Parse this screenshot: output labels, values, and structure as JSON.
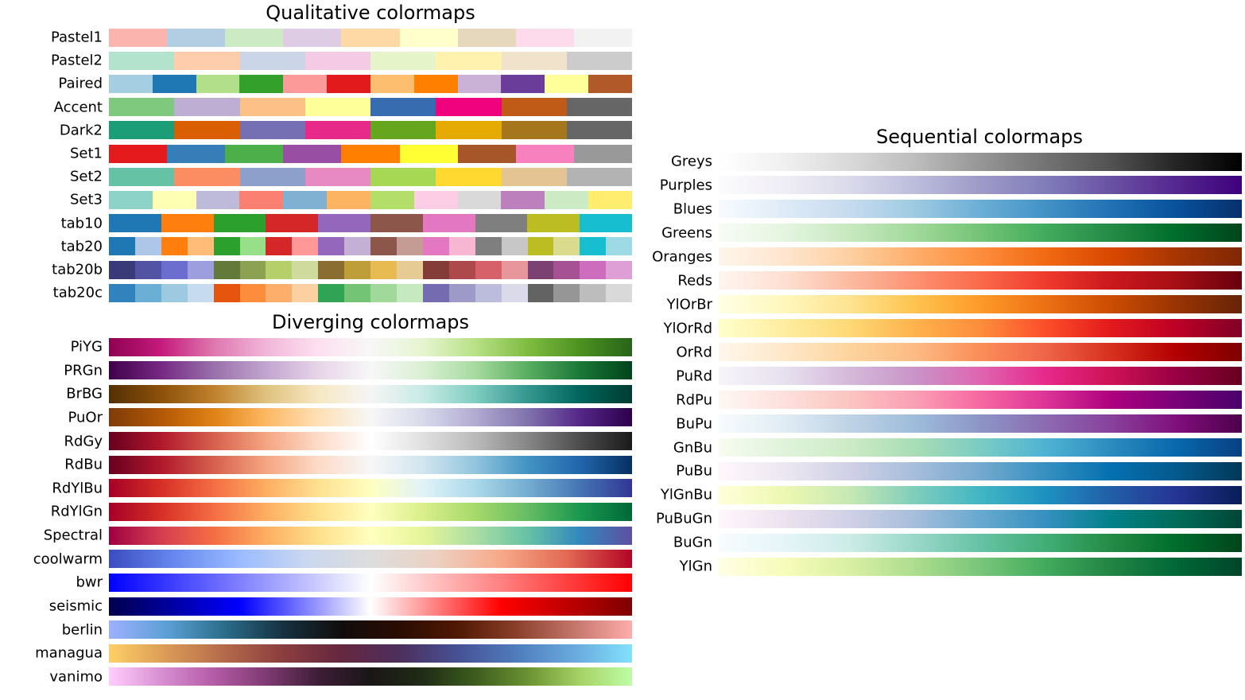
{
  "chart_data": [
    {
      "type": "heatmap",
      "title": "Qualitative colormaps",
      "colormaps": [
        {
          "name": "Pastel1",
          "discrete": true,
          "colors": [
            "#fbb4ae",
            "#b3cde3",
            "#ccebc5",
            "#decbe4",
            "#fed9a6",
            "#ffffcc",
            "#e5d8bd",
            "#fddaec",
            "#f2f2f2"
          ]
        },
        {
          "name": "Pastel2",
          "discrete": true,
          "colors": [
            "#b3e2cd",
            "#fdcdac",
            "#cbd5e8",
            "#f4cae4",
            "#e6f5c9",
            "#fff2ae",
            "#f1e2cc",
            "#cccccc"
          ]
        },
        {
          "name": "Paired",
          "discrete": true,
          "colors": [
            "#a6cee3",
            "#1f78b4",
            "#b2df8a",
            "#33a02c",
            "#fb9a99",
            "#e31a1c",
            "#fdbf6f",
            "#ff7f00",
            "#cab2d6",
            "#6a3d9a",
            "#ffff99",
            "#b15928"
          ]
        },
        {
          "name": "Accent",
          "discrete": true,
          "colors": [
            "#7fc97f",
            "#beaed4",
            "#fdc086",
            "#ffff99",
            "#386cb0",
            "#f0027f",
            "#bf5b17",
            "#666666"
          ]
        },
        {
          "name": "Dark2",
          "discrete": true,
          "colors": [
            "#1b9e77",
            "#d95f02",
            "#7570b3",
            "#e7298a",
            "#66a61e",
            "#e6ab02",
            "#a6761d",
            "#666666"
          ]
        },
        {
          "name": "Set1",
          "discrete": true,
          "colors": [
            "#e41a1c",
            "#377eb8",
            "#4daf4a",
            "#984ea3",
            "#ff7f00",
            "#ffff33",
            "#a65628",
            "#f781bf",
            "#999999"
          ]
        },
        {
          "name": "Set2",
          "discrete": true,
          "colors": [
            "#66c2a5",
            "#fc8d62",
            "#8da0cb",
            "#e78ac3",
            "#a6d854",
            "#ffd92f",
            "#e5c494",
            "#b3b3b3"
          ]
        },
        {
          "name": "Set3",
          "discrete": true,
          "colors": [
            "#8dd3c7",
            "#ffffb3",
            "#bebada",
            "#fb8072",
            "#80b1d3",
            "#fdb462",
            "#b3de69",
            "#fccde5",
            "#d9d9d9",
            "#bc80bd",
            "#ccebc5",
            "#ffed6f"
          ]
        },
        {
          "name": "tab10",
          "discrete": true,
          "colors": [
            "#1f77b4",
            "#ff7f0e",
            "#2ca02c",
            "#d62728",
            "#9467bd",
            "#8c564b",
            "#e377c2",
            "#7f7f7f",
            "#bcbd22",
            "#17becf"
          ]
        },
        {
          "name": "tab20",
          "discrete": true,
          "colors": [
            "#1f77b4",
            "#aec7e8",
            "#ff7f0e",
            "#ffbb78",
            "#2ca02c",
            "#98df8a",
            "#d62728",
            "#ff9896",
            "#9467bd",
            "#c5b0d5",
            "#8c564b",
            "#c49c94",
            "#e377c2",
            "#f7b6d2",
            "#7f7f7f",
            "#c7c7c7",
            "#bcbd22",
            "#dbdb8d",
            "#17becf",
            "#9edae5"
          ]
        },
        {
          "name": "tab20b",
          "discrete": true,
          "colors": [
            "#393b79",
            "#5254a3",
            "#6b6ecf",
            "#9c9ede",
            "#637939",
            "#8ca252",
            "#b5cf6b",
            "#cedb9c",
            "#8c6d31",
            "#bd9e39",
            "#e7ba52",
            "#e7cb94",
            "#843c39",
            "#ad494a",
            "#d6616b",
            "#e7969c",
            "#7b4173",
            "#a55194",
            "#ce6dbd",
            "#de9ed6"
          ]
        },
        {
          "name": "tab20c",
          "discrete": true,
          "colors": [
            "#3182bd",
            "#6baed6",
            "#9ecae1",
            "#c6dbef",
            "#e6550d",
            "#fd8d3c",
            "#fdae6b",
            "#fdd0a2",
            "#31a354",
            "#74c476",
            "#a1d99b",
            "#c7e9c0",
            "#756bb1",
            "#9e9ac8",
            "#bcbddc",
            "#dadaeb",
            "#636363",
            "#969696",
            "#bdbdbd",
            "#d9d9d9"
          ]
        }
      ]
    },
    {
      "type": "heatmap",
      "title": "Diverging colormaps",
      "colormaps": [
        {
          "name": "PiYG",
          "colors": [
            "#8e0152",
            "#c51b7d",
            "#de77ae",
            "#f1b6da",
            "#fde0ef",
            "#f7f7f7",
            "#e6f5d0",
            "#b8e186",
            "#7fbc41",
            "#4d9221",
            "#276419"
          ]
        },
        {
          "name": "PRGn",
          "colors": [
            "#40004b",
            "#762a83",
            "#9970ab",
            "#c2a5cf",
            "#e7d4e8",
            "#f7f7f7",
            "#d9f0d3",
            "#a6dba0",
            "#5aae61",
            "#1b7837",
            "#00441b"
          ]
        },
        {
          "name": "BrBG",
          "colors": [
            "#543005",
            "#8c510a",
            "#bf812d",
            "#dfc27d",
            "#f6e8c3",
            "#f5f5f5",
            "#c7eae5",
            "#80cdc1",
            "#35978f",
            "#01665e",
            "#003c30"
          ]
        },
        {
          "name": "PuOr",
          "colors": [
            "#7f3b08",
            "#b35806",
            "#e08214",
            "#fdb863",
            "#fee0b6",
            "#f7f7f7",
            "#d8daeb",
            "#b2abd2",
            "#8073ac",
            "#542788",
            "#2d004b"
          ]
        },
        {
          "name": "RdGy",
          "colors": [
            "#67001f",
            "#b2182b",
            "#d6604d",
            "#f4a582",
            "#fddbc7",
            "#ffffff",
            "#e0e0e0",
            "#bababa",
            "#878787",
            "#4d4d4d",
            "#1a1a1a"
          ]
        },
        {
          "name": "RdBu",
          "colors": [
            "#67001f",
            "#b2182b",
            "#d6604d",
            "#f4a582",
            "#fddbc7",
            "#f7f7f7",
            "#d1e5f0",
            "#92c5de",
            "#4393c3",
            "#2166ac",
            "#053061"
          ]
        },
        {
          "name": "RdYlBu",
          "colors": [
            "#a50026",
            "#d73027",
            "#f46d43",
            "#fdae61",
            "#fee090",
            "#ffffbf",
            "#e0f3f8",
            "#abd9e9",
            "#74add1",
            "#4575b4",
            "#313695"
          ]
        },
        {
          "name": "RdYlGn",
          "colors": [
            "#a50026",
            "#d73027",
            "#f46d43",
            "#fdae61",
            "#fee08b",
            "#ffffbf",
            "#d9ef8b",
            "#a6d96a",
            "#66bd63",
            "#1a9850",
            "#006837"
          ]
        },
        {
          "name": "Spectral",
          "colors": [
            "#9e0142",
            "#d53e4f",
            "#f46d43",
            "#fdae61",
            "#fee08b",
            "#ffffbf",
            "#e6f598",
            "#abdda4",
            "#66c2a5",
            "#3288bd",
            "#5e4fa2"
          ]
        },
        {
          "name": "coolwarm",
          "colors": [
            "#3b4cc0",
            "#6788ee",
            "#9abbff",
            "#c9d7f0",
            "#dddddd",
            "#edd1c2",
            "#f7a889",
            "#e26952",
            "#b40426"
          ]
        },
        {
          "name": "bwr",
          "colors": [
            "#0000ff",
            "#ffffff",
            "#ff0000"
          ]
        },
        {
          "name": "seismic",
          "colors": [
            "#00004c",
            "#0000ff",
            "#ffffff",
            "#ff0000",
            "#7f0000"
          ]
        },
        {
          "name": "berlin",
          "colors": [
            "#9eb0ff",
            "#5aa0d5",
            "#2b6c8a",
            "#163140",
            "#110d0c",
            "#2a0c02",
            "#501803",
            "#8a3f2a",
            "#c4756a",
            "#ffadad"
          ]
        },
        {
          "name": "managua",
          "colors": [
            "#ffcf67",
            "#d99a56",
            "#b4694a",
            "#8a3e3f",
            "#65273f",
            "#4c2f5d",
            "#465195",
            "#4f7cbc",
            "#68a9dc",
            "#82e1fd"
          ]
        },
        {
          "name": "vanimo",
          "colors": [
            "#ffcdfd",
            "#d88fd2",
            "#b45ca7",
            "#7f3a72",
            "#3d1d37",
            "#1a1616",
            "#1f2c16",
            "#3d5c1e",
            "#6a9231",
            "#a5d265",
            "#befda5"
          ]
        }
      ]
    },
    {
      "type": "heatmap",
      "title": "Sequential colormaps",
      "colormaps": [
        {
          "name": "Greys",
          "colors": [
            "#ffffff",
            "#f0f0f0",
            "#d9d9d9",
            "#bdbdbd",
            "#969696",
            "#737373",
            "#525252",
            "#252525",
            "#000000"
          ]
        },
        {
          "name": "Purples",
          "colors": [
            "#fcfbfd",
            "#efedf5",
            "#dadaeb",
            "#bcbddc",
            "#9e9ac8",
            "#807dba",
            "#6a51a3",
            "#54278f",
            "#3f007d"
          ]
        },
        {
          "name": "Blues",
          "colors": [
            "#f7fbff",
            "#deebf7",
            "#c6dbef",
            "#9ecae1",
            "#6baed6",
            "#4292c6",
            "#2171b5",
            "#08519c",
            "#08306b"
          ]
        },
        {
          "name": "Greens",
          "colors": [
            "#f7fcf5",
            "#e5f5e0",
            "#c7e9c0",
            "#a1d99b",
            "#74c476",
            "#41ab5d",
            "#238b45",
            "#006d2c",
            "#00441b"
          ]
        },
        {
          "name": "Oranges",
          "colors": [
            "#fff5eb",
            "#fee6ce",
            "#fdd0a2",
            "#fdae6b",
            "#fd8d3c",
            "#f16913",
            "#d94801",
            "#a63603",
            "#7f2704"
          ]
        },
        {
          "name": "Reds",
          "colors": [
            "#fff5f0",
            "#fee0d2",
            "#fcbba1",
            "#fc9272",
            "#fb6a4a",
            "#ef3b2c",
            "#cb181d",
            "#a50f15",
            "#67000d"
          ]
        },
        {
          "name": "YlOrBr",
          "colors": [
            "#ffffe5",
            "#fff7bc",
            "#fee391",
            "#fec44f",
            "#fe9929",
            "#ec7014",
            "#cc4c02",
            "#993404",
            "#662506"
          ]
        },
        {
          "name": "YlOrRd",
          "colors": [
            "#ffffcc",
            "#ffeda0",
            "#fed976",
            "#feb24c",
            "#fd8d3c",
            "#fc4e2a",
            "#e31a1c",
            "#bd0026",
            "#800026"
          ]
        },
        {
          "name": "OrRd",
          "colors": [
            "#fff7ec",
            "#fee8c8",
            "#fdd49e",
            "#fdbb84",
            "#fc8d59",
            "#ef6548",
            "#d7301f",
            "#b30000",
            "#7f0000"
          ]
        },
        {
          "name": "PuRd",
          "colors": [
            "#f7f4f9",
            "#e7e1ef",
            "#d4b9da",
            "#c994c7",
            "#df65b0",
            "#e7298a",
            "#ce1256",
            "#980043",
            "#67001f"
          ]
        },
        {
          "name": "RdPu",
          "colors": [
            "#fff7f3",
            "#fde0dd",
            "#fcc5c0",
            "#fa9fb5",
            "#f768a1",
            "#dd3497",
            "#ae017e",
            "#7a0177",
            "#49006a"
          ]
        },
        {
          "name": "BuPu",
          "colors": [
            "#f7fcfd",
            "#e0ecf4",
            "#bfd3e6",
            "#9ebcda",
            "#8c96c6",
            "#8c6bb1",
            "#88419d",
            "#810f7c",
            "#4d004b"
          ]
        },
        {
          "name": "GnBu",
          "colors": [
            "#f7fcf0",
            "#e0f3db",
            "#ccebc5",
            "#a8ddb5",
            "#7bccc4",
            "#4eb3d3",
            "#2b8cbe",
            "#0868ac",
            "#084081"
          ]
        },
        {
          "name": "PuBu",
          "colors": [
            "#fff7fb",
            "#ece7f2",
            "#d0d1e6",
            "#a6bddb",
            "#74a9cf",
            "#3690c0",
            "#0570b0",
            "#045a8d",
            "#023858"
          ]
        },
        {
          "name": "YlGnBu",
          "colors": [
            "#ffffd9",
            "#edf8b1",
            "#c7e9b4",
            "#7fcdbb",
            "#41b6c4",
            "#1d91c0",
            "#225ea8",
            "#253494",
            "#081d58"
          ]
        },
        {
          "name": "PuBuGn",
          "colors": [
            "#fff7fb",
            "#ece2f0",
            "#d0d1e6",
            "#a6bddb",
            "#67a9cf",
            "#3690c0",
            "#02818a",
            "#016c59",
            "#014636"
          ]
        },
        {
          "name": "BuGn",
          "colors": [
            "#f7fcfd",
            "#e5f5f9",
            "#ccece6",
            "#99d8c9",
            "#66c2a4",
            "#41ae76",
            "#238b45",
            "#006d2c",
            "#00441b"
          ]
        },
        {
          "name": "YlGn",
          "colors": [
            "#ffffe5",
            "#f7fcb9",
            "#d9f0a3",
            "#addd8e",
            "#78c679",
            "#41ab5d",
            "#238443",
            "#006837",
            "#004529"
          ]
        }
      ]
    }
  ]
}
